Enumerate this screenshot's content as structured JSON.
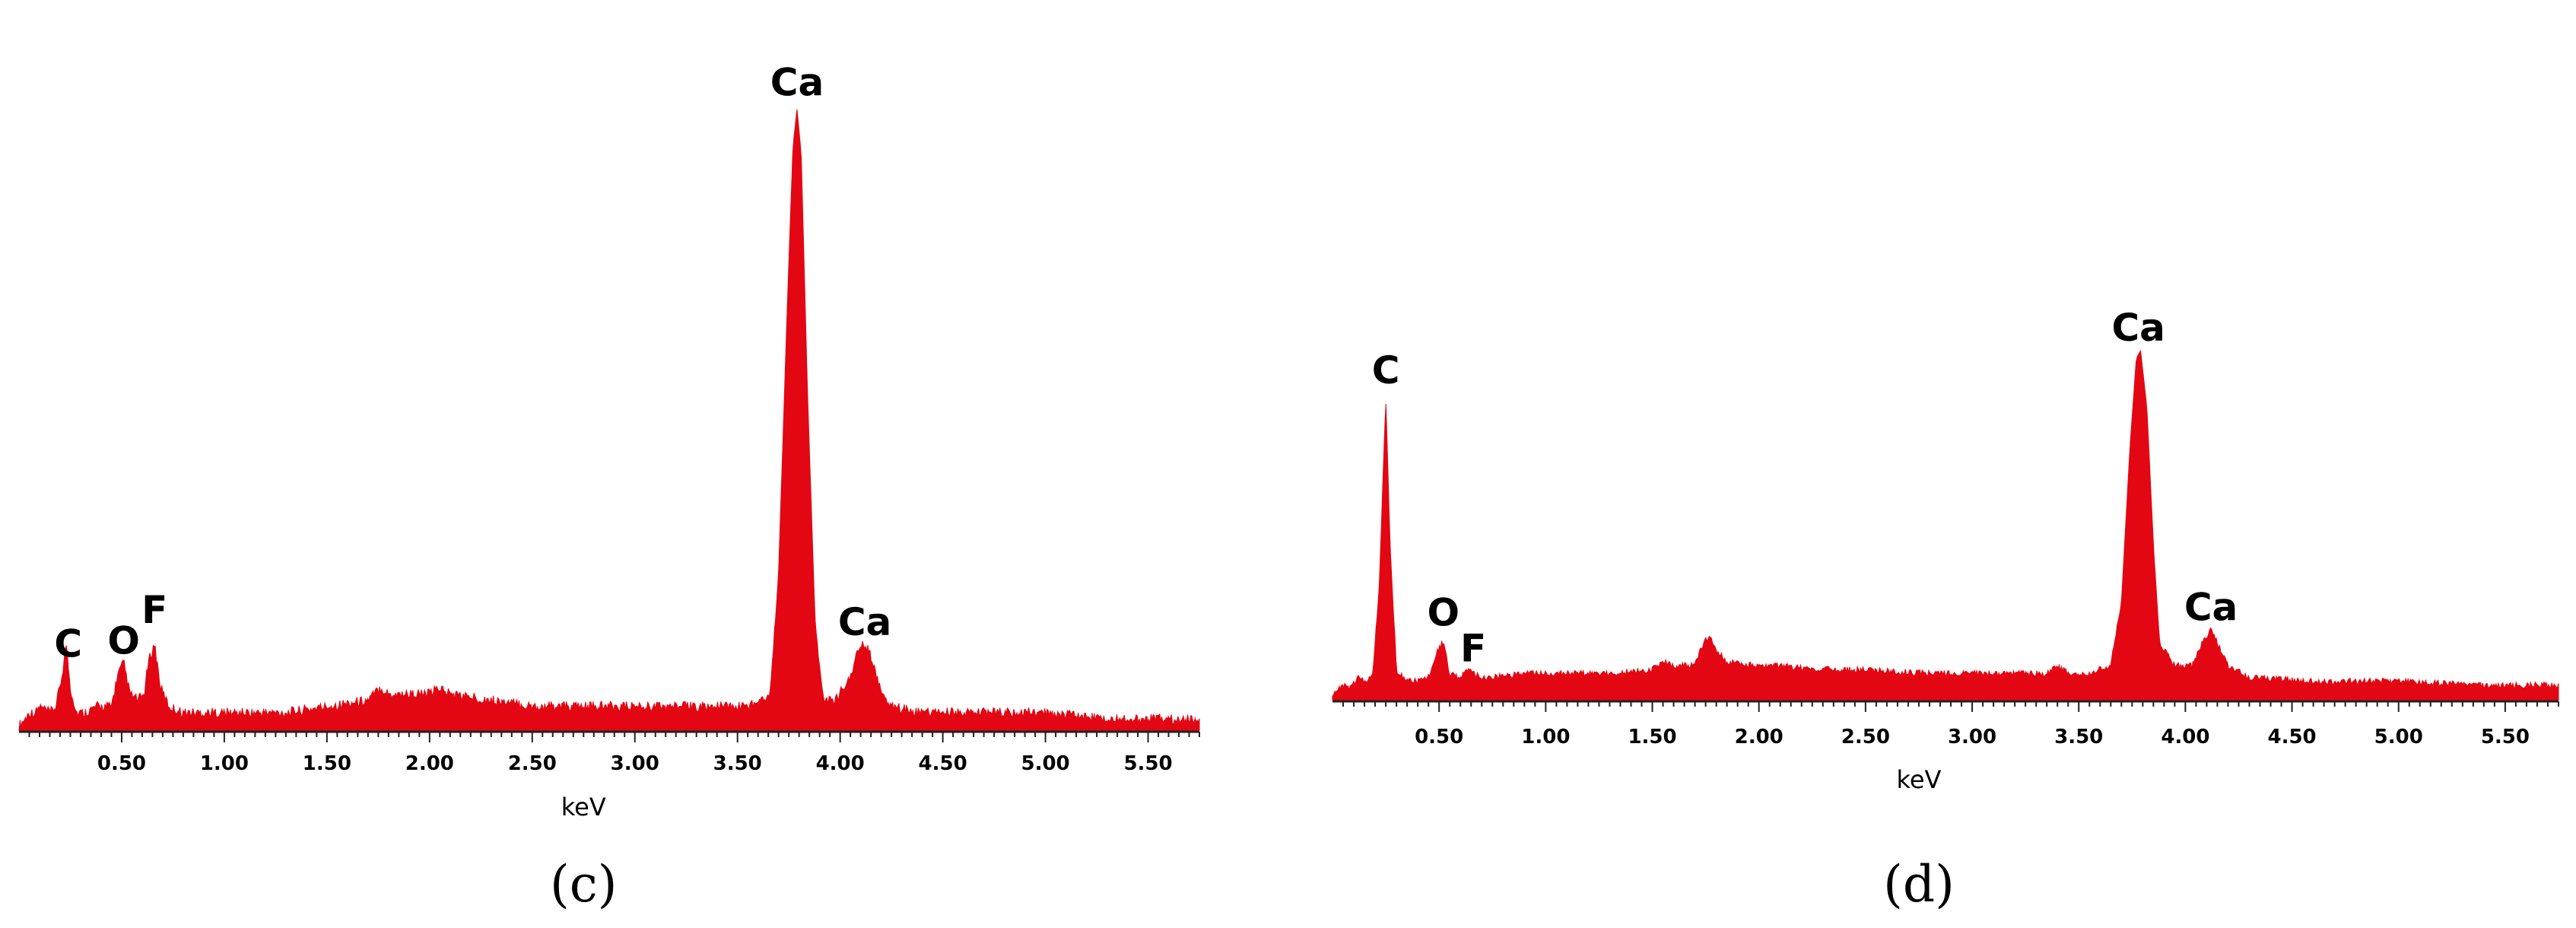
{
  "accent_color": "#e30613",
  "chart_data": [
    {
      "type": "area",
      "panel_label": "(c)",
      "xlabel": "keV",
      "ylabel": "",
      "xlim": [
        0.0,
        5.75
      ],
      "ylim": [
        0,
        100
      ],
      "xticks": [
        "0.50",
        "1.00",
        "1.50",
        "2.00",
        "2.50",
        "3.00",
        "3.50",
        "4.00",
        "4.50",
        "5.00",
        "5.50"
      ],
      "x": [
        0.0,
        0.03,
        0.05,
        0.08,
        0.1,
        0.15,
        0.18,
        0.21,
        0.23,
        0.25,
        0.28,
        0.32,
        0.38,
        0.45,
        0.48,
        0.51,
        0.54,
        0.58,
        0.61,
        0.63,
        0.66,
        0.69,
        0.73,
        0.8,
        1.0,
        1.3,
        1.5,
        1.7,
        1.76,
        1.8,
        1.9,
        2.0,
        2.05,
        2.1,
        2.3,
        2.5,
        2.8,
        3.0,
        3.2,
        3.4,
        3.55,
        3.66,
        3.7,
        3.74,
        3.77,
        3.79,
        3.81,
        3.84,
        3.88,
        3.92,
        3.98,
        4.05,
        4.09,
        4.12,
        4.15,
        4.19,
        4.25,
        4.4,
        4.7,
        5.0,
        5.3,
        5.75
      ],
      "y": [
        0,
        1,
        2,
        2,
        3,
        2,
        3,
        8,
        13,
        6,
        2,
        2,
        3,
        3,
        8,
        10,
        5,
        4,
        5,
        10,
        13,
        6,
        3,
        2,
        2,
        2,
        3,
        4,
        6,
        5,
        5,
        5,
        6,
        5,
        4,
        3,
        3,
        3,
        3,
        3,
        3,
        5,
        25,
        65,
        93,
        99,
        92,
        55,
        15,
        4,
        4,
        8,
        12,
        13,
        11,
        6,
        3,
        2,
        2,
        2,
        1,
        1
      ],
      "peaks": [
        {
          "label": "C",
          "x": 0.24
        },
        {
          "label": "O",
          "x": 0.51
        },
        {
          "label": "F",
          "x": 0.66
        },
        {
          "label": "Ca",
          "x": 3.79
        },
        {
          "label": "Ca",
          "x": 4.12
        }
      ]
    },
    {
      "type": "area",
      "panel_label": "(d)",
      "xlabel": "keV",
      "ylabel": "",
      "xlim": [
        0.0,
        5.75
      ],
      "ylim": [
        0,
        100
      ],
      "xticks": [
        "0.50",
        "1.00",
        "1.50",
        "2.00",
        "2.50",
        "3.00",
        "3.50",
        "4.00",
        "4.50",
        "5.00",
        "5.50"
      ],
      "x": [
        0.0,
        0.03,
        0.05,
        0.08,
        0.12,
        0.16,
        0.19,
        0.22,
        0.25,
        0.27,
        0.3,
        0.35,
        0.4,
        0.45,
        0.49,
        0.52,
        0.55,
        0.6,
        0.64,
        0.67,
        0.7,
        0.75,
        0.9,
        1.1,
        1.3,
        1.5,
        1.55,
        1.6,
        1.7,
        1.74,
        1.77,
        1.8,
        1.85,
        2.0,
        2.1,
        2.3,
        2.5,
        2.8,
        3.0,
        3.2,
        3.35,
        3.4,
        3.45,
        3.55,
        3.65,
        3.7,
        3.74,
        3.77,
        3.79,
        3.82,
        3.85,
        3.88,
        3.95,
        4.03,
        4.09,
        4.12,
        4.15,
        4.2,
        4.3,
        4.6,
        5.0,
        5.4,
        5.75
      ],
      "y": [
        0,
        2,
        3,
        2,
        5,
        4,
        6,
        30,
        78,
        40,
        7,
        4,
        4,
        5,
        12,
        14,
        6,
        5,
        7,
        6,
        5,
        5,
        6,
        6,
        6,
        7,
        9,
        8,
        8,
        14,
        16,
        12,
        9,
        8,
        8,
        7,
        7,
        6,
        6,
        6,
        6,
        8,
        6,
        6,
        8,
        25,
        65,
        88,
        90,
        75,
        40,
        14,
        8,
        8,
        15,
        17,
        14,
        8,
        5,
        4,
        4,
        3,
        3
      ],
      "peaks": [
        {
          "label": "C",
          "x": 0.25
        },
        {
          "label": "O",
          "x": 0.52
        },
        {
          "label": "F",
          "x": 0.66
        },
        {
          "label": "Ca",
          "x": 3.78
        },
        {
          "label": "Ca",
          "x": 4.12
        }
      ]
    }
  ]
}
